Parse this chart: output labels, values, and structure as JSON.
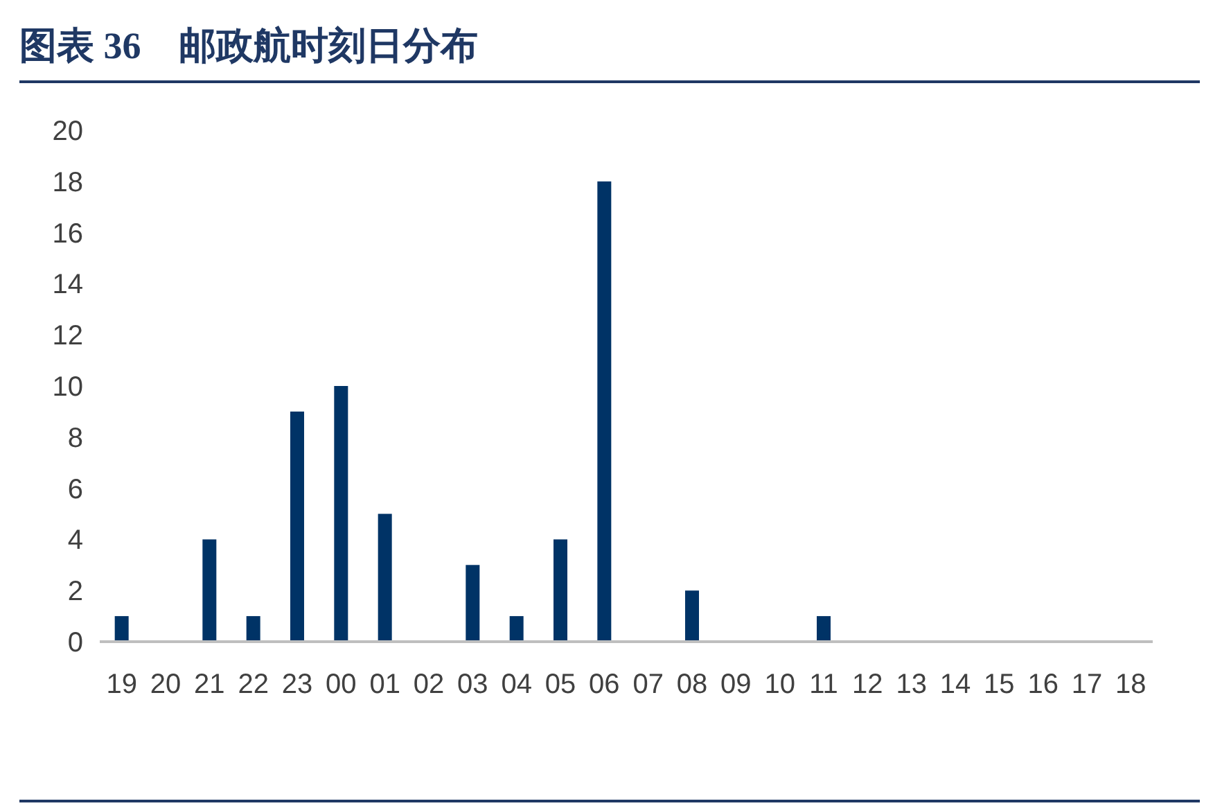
{
  "chart_data": {
    "type": "bar",
    "title": "图表 36　邮政航时刻日分布",
    "categories": [
      "19",
      "20",
      "21",
      "22",
      "23",
      "00",
      "01",
      "02",
      "03",
      "04",
      "05",
      "06",
      "07",
      "08",
      "09",
      "10",
      "11",
      "12",
      "13",
      "14",
      "15",
      "16",
      "17",
      "18"
    ],
    "values": [
      1,
      0,
      4,
      1,
      9,
      10,
      5,
      0,
      3,
      1,
      4,
      18,
      0,
      2,
      0,
      0,
      1,
      0,
      0,
      0,
      0,
      0,
      0,
      0
    ],
    "color": "#003366",
    "ylim": [
      0,
      20
    ],
    "yticks": [
      0,
      2,
      4,
      6,
      8,
      10,
      12,
      14,
      16,
      18,
      20
    ]
  }
}
